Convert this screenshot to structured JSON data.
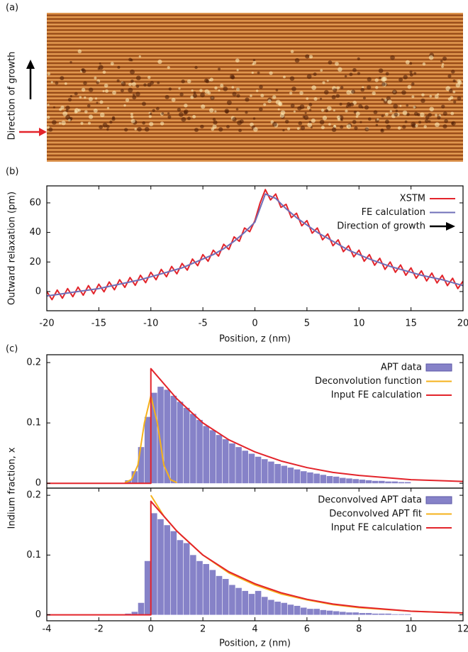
{
  "panel_a": {
    "label": "(a)",
    "annotation": "Direction of growth"
  },
  "chart_data": [
    {
      "type": "line",
      "panel_label": "(b)",
      "xlabel": "Position, z (nm)",
      "ylabel": "Outward relaxation (pm)",
      "xlim": [
        -20,
        20
      ],
      "xticks": [
        -20,
        -15,
        -10,
        -5,
        0,
        5,
        10,
        15,
        20
      ],
      "ylim": [
        -13,
        71.5
      ],
      "yticks": [
        0,
        20,
        40,
        60
      ],
      "annotation": "Direction of growth",
      "series": [
        {
          "name": "XSTM",
          "color": "#e3242b",
          "x": [
            -20,
            -19.5,
            -19,
            -18.5,
            -18,
            -17.5,
            -17,
            -16.5,
            -16,
            -15.5,
            -15,
            -14.5,
            -14,
            -13.5,
            -13,
            -12.5,
            -12,
            -11.5,
            -11,
            -10.5,
            -10,
            -9.5,
            -9,
            -8.5,
            -8,
            -7.5,
            -7,
            -6.5,
            -6,
            -5.5,
            -5,
            -4.5,
            -4,
            -3.5,
            -3,
            -2.5,
            -2,
            -1.5,
            -1,
            -0.5,
            0,
            0.5,
            1,
            1.5,
            2,
            2.5,
            3,
            3.5,
            4,
            4.5,
            5,
            5.5,
            6,
            6.5,
            7,
            7.5,
            8,
            8.5,
            9,
            9.5,
            10,
            10.5,
            11,
            11.5,
            12,
            12.5,
            13,
            13.5,
            14,
            14.5,
            15,
            15.5,
            16,
            16.5,
            17,
            17.5,
            18,
            18.5,
            19,
            19.5,
            20
          ],
          "values": [
            0,
            -5.5,
            1,
            -4.5,
            2,
            -3.5,
            3,
            -2.5,
            4,
            -1.5,
            5,
            -0.2,
            6.5,
            1.2,
            8,
            2.8,
            9.5,
            4.2,
            11,
            6,
            13,
            8,
            15,
            10,
            17,
            12,
            19,
            14.5,
            22,
            17.5,
            25,
            20.5,
            28,
            24,
            32,
            28.5,
            37,
            34,
            43,
            40.5,
            48,
            60,
            69,
            62,
            66,
            57,
            59,
            50,
            53,
            44.5,
            48,
            39.5,
            43,
            35,
            39,
            31,
            35,
            27,
            31,
            23.5,
            28,
            20.5,
            25,
            17.8,
            22.5,
            15,
            20,
            13,
            18,
            11,
            16,
            9,
            14,
            7.2,
            12.5,
            5.8,
            11,
            4,
            9,
            2,
            7
          ]
        },
        {
          "name": "FE calculation",
          "color": "#6f6fb8",
          "x": [
            -20,
            -19,
            -18,
            -17,
            -16,
            -15,
            -14,
            -13,
            -12,
            -11,
            -10,
            -9,
            -8,
            -7,
            -6,
            -5,
            -4,
            -3,
            -2,
            -1,
            0,
            1,
            2,
            3,
            4,
            5,
            6,
            7,
            8,
            9,
            10,
            11,
            12,
            13,
            14,
            15,
            16,
            17,
            18,
            19,
            20
          ],
          "values": [
            -3,
            -2,
            -1,
            0,
            1,
            2,
            3.5,
            5,
            6.5,
            8,
            10,
            12,
            14,
            16,
            19,
            22,
            25,
            29,
            34,
            40,
            47,
            66,
            63,
            56,
            50,
            45,
            40,
            36,
            32,
            28,
            25,
            22,
            19.5,
            17,
            15,
            13,
            11,
            9.5,
            8,
            6,
            4
          ]
        }
      ]
    },
    {
      "type": "histogram",
      "panel_label": "(c)",
      "ylabel": "Indium fraction, x",
      "xlim": [
        -4,
        12
      ],
      "ylim": [
        -0.008,
        0.213
      ],
      "yticks": [
        0,
        0.1,
        0.2
      ],
      "bins": [
        -1,
        -0.75,
        -0.5,
        -0.25,
        0,
        0.25,
        0.5,
        0.75,
        1,
        1.25,
        1.5,
        1.75,
        2,
        2.25,
        2.5,
        2.75,
        3,
        3.25,
        3.5,
        3.75,
        4,
        4.25,
        4.5,
        4.75,
        5,
        5.25,
        5.5,
        5.75,
        6,
        6.25,
        6.5,
        6.75,
        7,
        7.25,
        7.5,
        7.75,
        8,
        8.25,
        8.5,
        8.75,
        9,
        9.25,
        9.5,
        9.75,
        10
      ],
      "series": [
        {
          "name": "APT data",
          "color": "#8682c8",
          "values": [
            0.005,
            0.02,
            0.06,
            0.11,
            0.15,
            0.16,
            0.155,
            0.145,
            0.135,
            0.125,
            0.115,
            0.105,
            0.095,
            0.088,
            0.08,
            0.073,
            0.066,
            0.06,
            0.054,
            0.049,
            0.044,
            0.04,
            0.036,
            0.032,
            0.029,
            0.026,
            0.023,
            0.02,
            0.018,
            0.016,
            0.014,
            0.012,
            0.011,
            0.009,
            0.008,
            0.007,
            0.006,
            0.005,
            0.004,
            0.004,
            0.003,
            0.003,
            0.002,
            0.002
          ]
        }
      ],
      "lines": [
        {
          "name": "Deconvolution function",
          "color": "#f5b21b",
          "x": [
            -1,
            -0.75,
            -0.5,
            -0.25,
            0,
            0.25,
            0.5,
            0.75,
            1
          ],
          "values": [
            0.001,
            0.006,
            0.03,
            0.1,
            0.145,
            0.1,
            0.03,
            0.006,
            0.001
          ]
        },
        {
          "name": "Input FE calculation",
          "color": "#e3242b",
          "x": [
            -4,
            0,
            0,
            1,
            2,
            3,
            4,
            5,
            6,
            7,
            8,
            10,
            12
          ],
          "values": [
            0,
            0,
            0.19,
            0.14,
            0.1,
            0.072,
            0.052,
            0.037,
            0.026,
            0.018,
            0.013,
            0.006,
            0.003
          ]
        }
      ]
    },
    {
      "type": "histogram",
      "xlabel": "Position, z (nm)",
      "xlim": [
        -4,
        12
      ],
      "xticks": [
        -4,
        -2,
        0,
        2,
        4,
        6,
        8,
        10,
        12
      ],
      "ylim": [
        -0.01,
        0.212
      ],
      "yticks": [
        0,
        0.1,
        0.2
      ],
      "bins": [
        -1,
        -0.75,
        -0.5,
        -0.25,
        0,
        0.25,
        0.5,
        0.75,
        1,
        1.25,
        1.5,
        1.75,
        2,
        2.25,
        2.5,
        2.75,
        3,
        3.25,
        3.5,
        3.75,
        4,
        4.25,
        4.5,
        4.75,
        5,
        5.25,
        5.5,
        5.75,
        6,
        6.25,
        6.5,
        6.75,
        7,
        7.25,
        7.5,
        7.75,
        8,
        8.25,
        8.5,
        8.75,
        9,
        9.25,
        9.5,
        9.75,
        10
      ],
      "series": [
        {
          "name": "Deconvolved APT data",
          "color": "#8682c8",
          "values": [
            0.002,
            0.005,
            0.02,
            0.09,
            0.17,
            0.16,
            0.15,
            0.14,
            0.125,
            0.12,
            0.1,
            0.09,
            0.085,
            0.075,
            0.065,
            0.06,
            0.05,
            0.045,
            0.04,
            0.035,
            0.04,
            0.03,
            0.025,
            0.022,
            0.02,
            0.017,
            0.015,
            0.012,
            0.01,
            0.01,
            0.008,
            0.007,
            0.006,
            0.005,
            0.004,
            0.004,
            0.003,
            0.003,
            0.002,
            0.002,
            0.002,
            0.001,
            0.001,
            0.001
          ]
        }
      ],
      "lines": [
        {
          "name": "Deconvolved APT fit",
          "color": "#f5b21b",
          "x": [
            0,
            0.5,
            1,
            2,
            3,
            4,
            5,
            6,
            7,
            8,
            10,
            12
          ],
          "values": [
            0.2,
            0.165,
            0.14,
            0.1,
            0.07,
            0.05,
            0.035,
            0.025,
            0.017,
            0.012,
            0.006,
            0.003
          ]
        },
        {
          "name": "Input FE calculation",
          "color": "#e3242b",
          "x": [
            -4,
            0,
            0,
            1,
            2,
            3,
            4,
            5,
            6,
            7,
            8,
            10,
            12
          ],
          "values": [
            0,
            0,
            0.19,
            0.14,
            0.1,
            0.072,
            0.052,
            0.037,
            0.026,
            0.018,
            0.013,
            0.006,
            0.003
          ]
        }
      ]
    }
  ]
}
